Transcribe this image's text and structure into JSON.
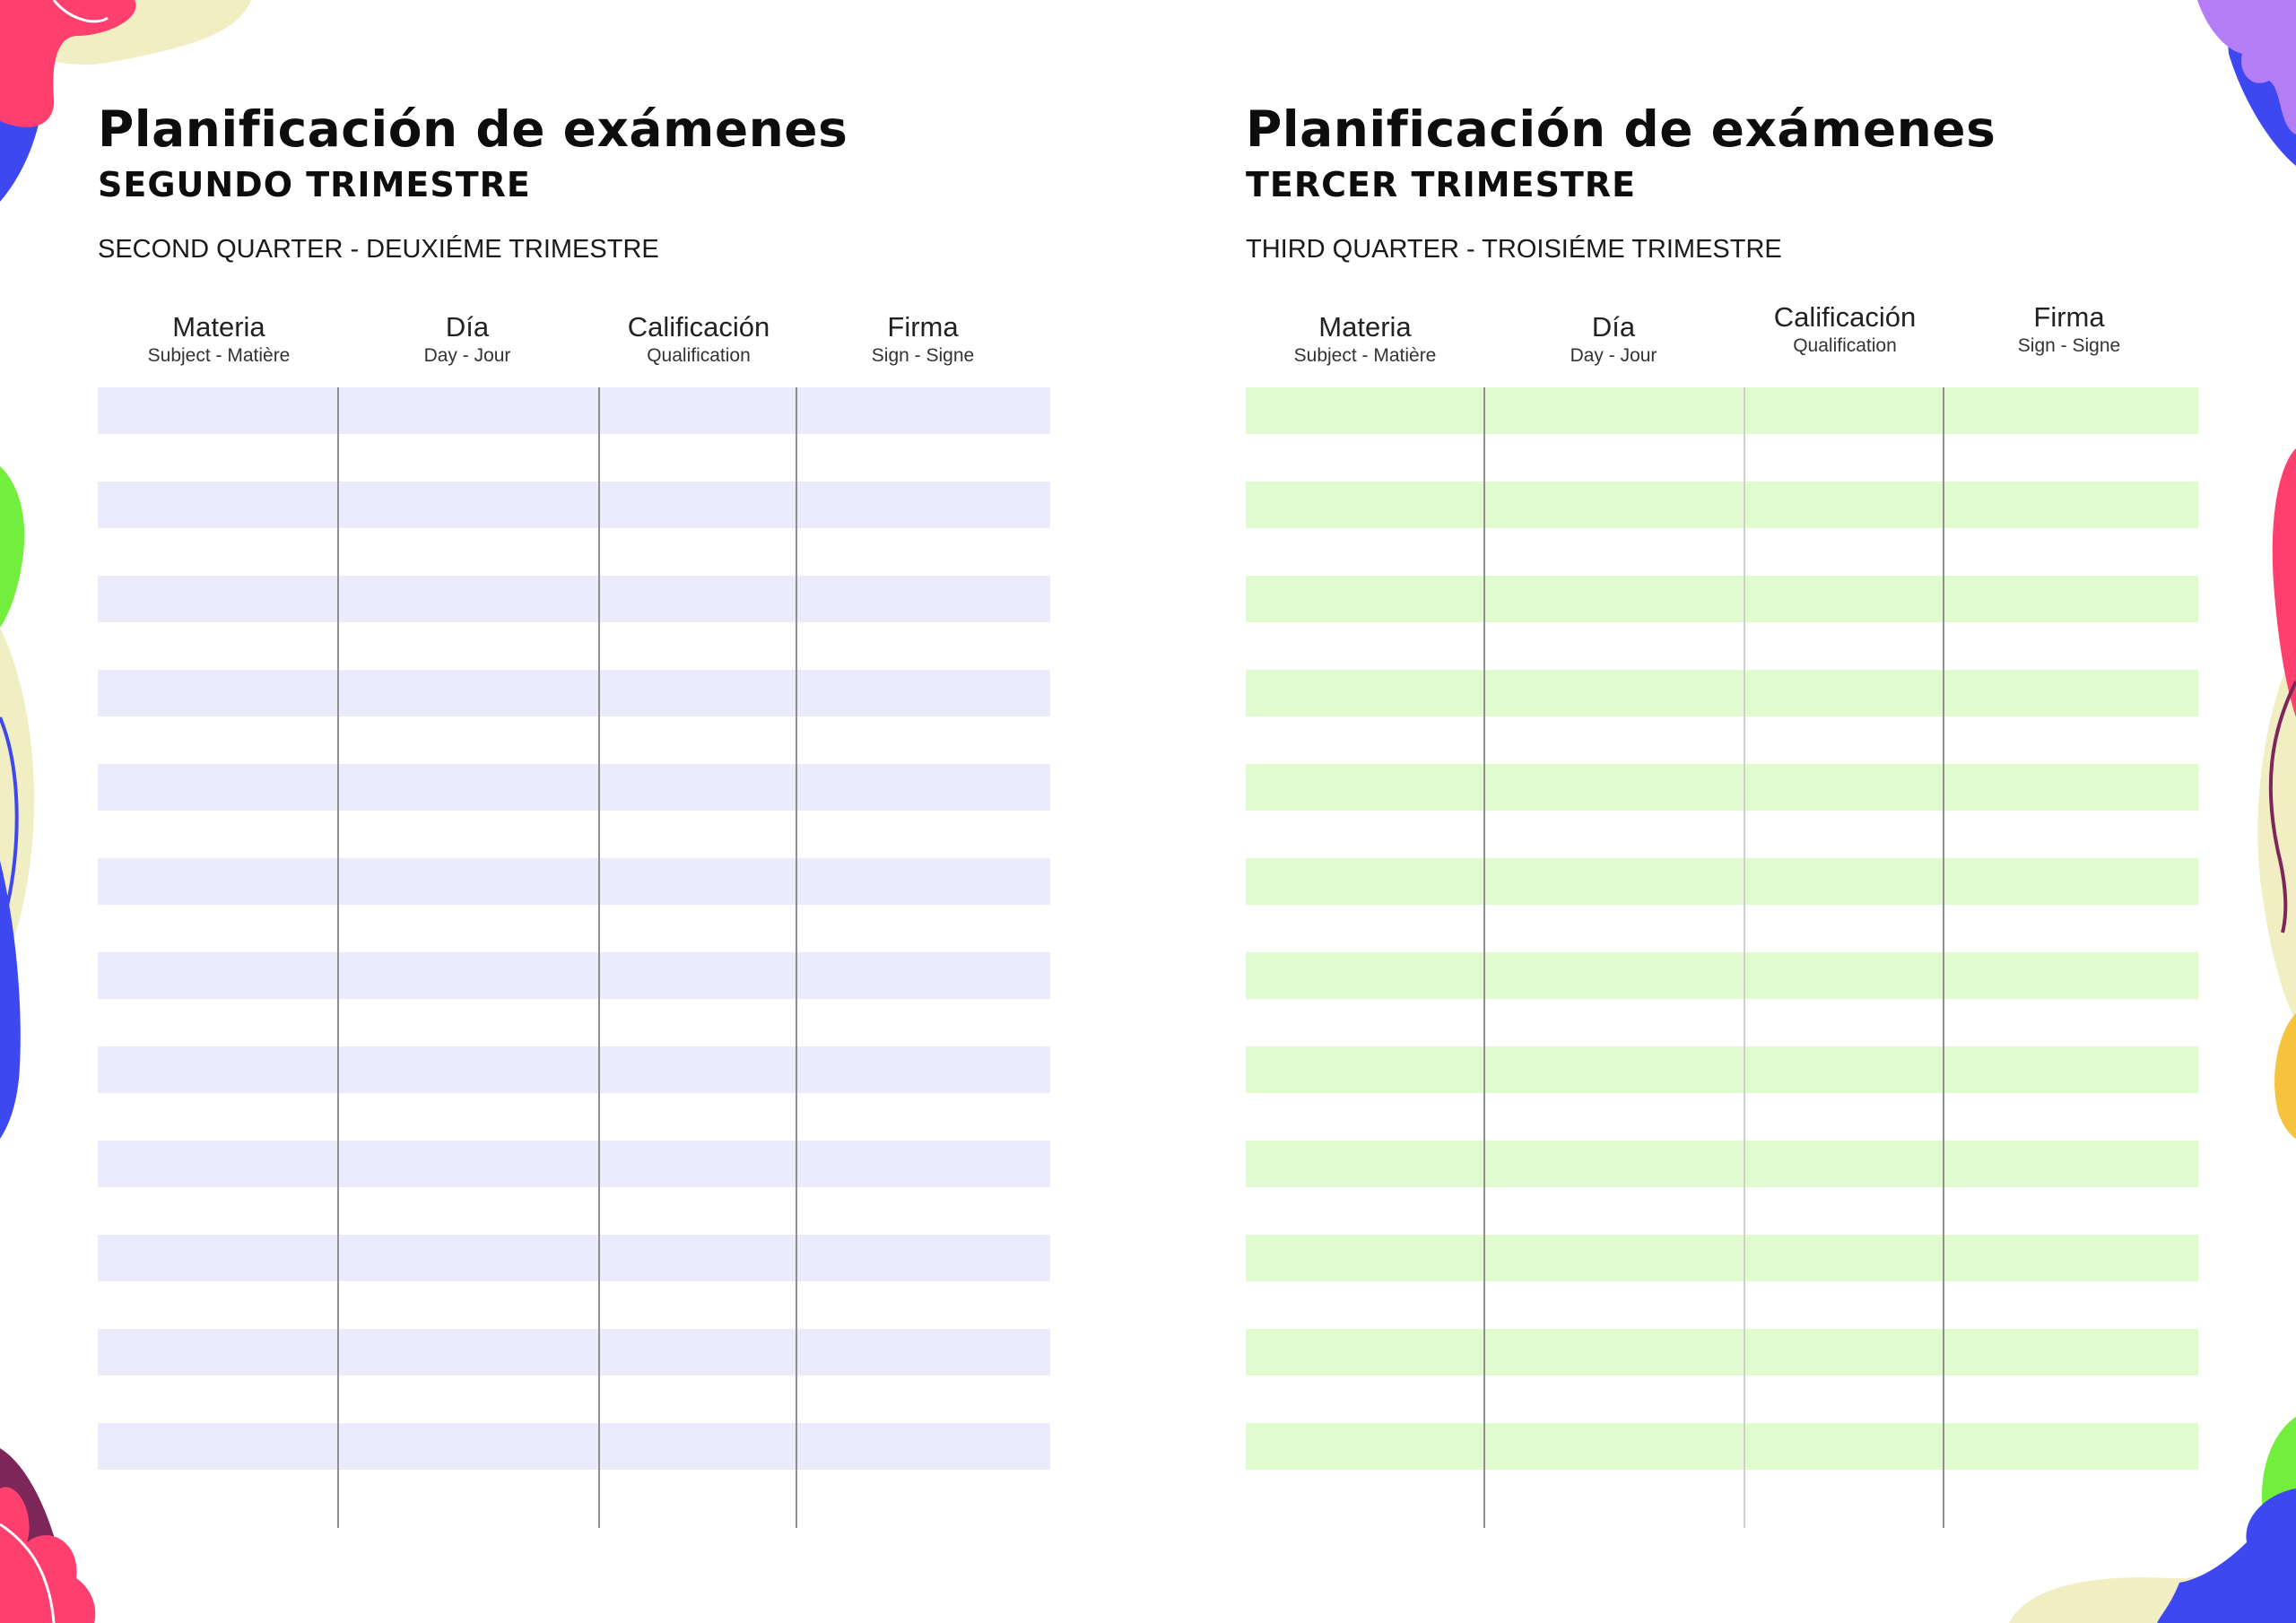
{
  "colors": {
    "left_stripe": "#ecebfc",
    "right_stripe": "#e0fccf",
    "pink": "#ff3f6e",
    "blue": "#3e48f0",
    "purple": "#b57df5",
    "green": "#72ee3c",
    "cream": "#f2eec4",
    "yellow": "#f6c33c",
    "plum": "#7c2659"
  },
  "left": {
    "title": "Planificación de exámenes",
    "subtitle": "SEGUNDO TRIMESTRE",
    "tagline": "SECOND QUARTER - DEUXIÉME TRIMESTRE",
    "columns": [
      {
        "label": "Materia",
        "sub": "Subject - Matière"
      },
      {
        "label": "Día",
        "sub": "Day - Jour"
      },
      {
        "label": "Calificación",
        "sub": "Qualification"
      },
      {
        "label": "Firma",
        "sub": "Sign - Signe"
      }
    ]
  },
  "right": {
    "title": "Planificación de exámenes",
    "subtitle": "TERCER TRIMESTRE",
    "tagline": "THIRD QUARTER - TROISIÉME TRIMESTRE",
    "columns": [
      {
        "label": "Materia",
        "sub": "Subject - Matière"
      },
      {
        "label": "Día",
        "sub": "Day - Jour"
      },
      {
        "label": "Calificación",
        "sub": "Qualification"
      },
      {
        "label": "Firma",
        "sub": "Sign - Signe"
      }
    ]
  }
}
